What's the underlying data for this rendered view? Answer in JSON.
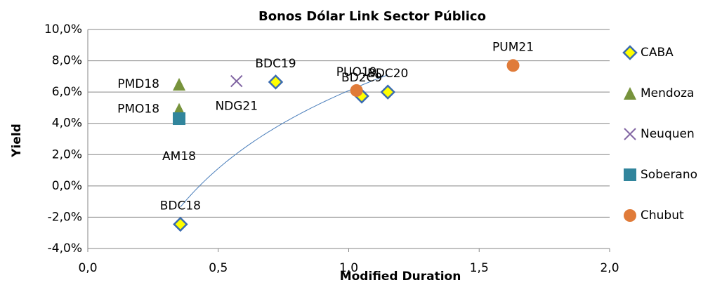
{
  "chart_data": {
    "type": "scatter",
    "title": "Bonos Dólar Link Sector Público",
    "x_label": "Modified Duration",
    "y_label": "Yield",
    "xlim": [
      0,
      2
    ],
    "ylim": [
      -4,
      10
    ],
    "xticks": [
      {
        "value": 0,
        "label": "0,0"
      },
      {
        "value": 0.5,
        "label": "0,5"
      },
      {
        "value": 1,
        "label": "1,0"
      },
      {
        "value": 1.5,
        "label": "1,5"
      },
      {
        "value": 2,
        "label": "2,0"
      }
    ],
    "yticks": [
      {
        "value": -4,
        "label": "-4,0%"
      },
      {
        "value": -2,
        "label": "-2,0%"
      },
      {
        "value": 0,
        "label": "0,0%"
      },
      {
        "value": 2,
        "label": "2,0%"
      },
      {
        "value": 4,
        "label": "4,0%"
      },
      {
        "value": 6,
        "label": "6,0%"
      },
      {
        "value": 8,
        "label": "8,0%"
      },
      {
        "value": 10,
        "label": "10,0%"
      }
    ],
    "grid": true,
    "legend": "right",
    "series": [
      {
        "name": "CABA",
        "color": "#ffff00",
        "marker": "diamond",
        "trendline": "logarithmic",
        "x": [
          0.355,
          0.72,
          1.05,
          1.15
        ],
        "values": [
          -2.45,
          6.64,
          5.74,
          6.0
        ],
        "labels": [
          "BDC18",
          "BDC19",
          "BD2C9",
          "BDC20"
        ]
      },
      {
        "name": "Mendoza",
        "color": "#77933c",
        "marker": "triangle",
        "x": [
          0.35,
          0.35
        ],
        "values": [
          6.5,
          4.9
        ],
        "labels": [
          "PMD18",
          "PMO18"
        ]
      },
      {
        "name": "Neuquen",
        "color": "#8064a2",
        "marker": "x",
        "x": [
          0.57
        ],
        "values": [
          6.7
        ],
        "labels": [
          "NDG21"
        ]
      },
      {
        "name": "Soberano",
        "color": "#31859c",
        "marker": "square",
        "x": [
          0.35
        ],
        "values": [
          4.3
        ],
        "labels": [
          "AM18"
        ]
      },
      {
        "name": "Chubut",
        "color": "#e07b39",
        "marker": "circle",
        "x": [
          1.03,
          1.63
        ],
        "values": [
          6.1,
          7.7
        ],
        "labels": [
          "PUO19",
          "PUM21"
        ]
      }
    ]
  }
}
